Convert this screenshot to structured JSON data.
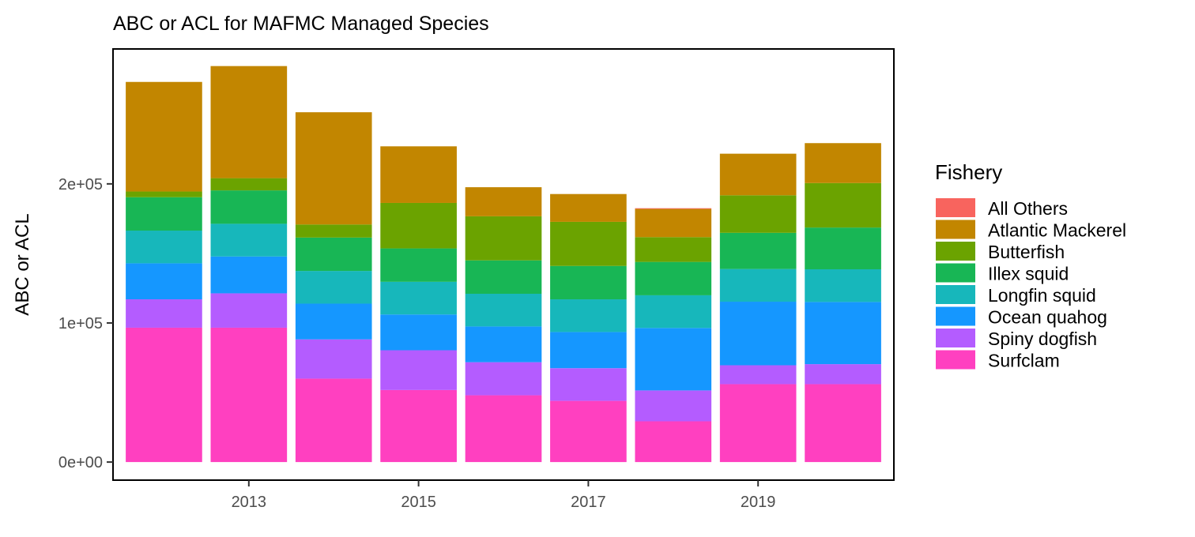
{
  "chart_data": {
    "type": "bar",
    "stacked": true,
    "title": "ABC or ACL for MAFMC Managed Species",
    "xlabel": "",
    "ylabel": "ABC or ACL",
    "x": [
      2012,
      2013,
      2014,
      2015,
      2016,
      2017,
      2018,
      2019,
      2020
    ],
    "x_ticks": [
      2013,
      2015,
      2017,
      2019
    ],
    "y_ticks": [
      0,
      100000,
      200000
    ],
    "y_tick_labels": [
      "0e+00",
      "1e+05",
      "2e+05"
    ],
    "ylim": [
      -13000,
      297000
    ],
    "xlim": [
      2011.4,
      2020.6
    ],
    "grid": false,
    "legend": {
      "title": "Fishery",
      "position": "right"
    },
    "series": [
      {
        "name": "Surfclam",
        "color": "#FF40C0",
        "values": [
          96600,
          96600,
          60000,
          51800,
          48000,
          44000,
          29300,
          56000,
          56000
        ]
      },
      {
        "name": "Spiny dogfish",
        "color": "#B45CFF",
        "values": [
          20400,
          24700,
          28200,
          28600,
          23800,
          23500,
          22200,
          13600,
          14400
        ]
      },
      {
        "name": "Ocean quahog",
        "color": "#1597FF",
        "values": [
          25900,
          26500,
          25700,
          25700,
          25700,
          26000,
          44900,
          45700,
          44700
        ]
      },
      {
        "name": "Longfin squid",
        "color": "#17B7BB",
        "values": [
          23500,
          23500,
          23500,
          23500,
          23500,
          23500,
          23500,
          23500,
          23500
        ]
      },
      {
        "name": "Illex squid",
        "color": "#18B655",
        "values": [
          24000,
          24000,
          24000,
          24000,
          24000,
          24000,
          24000,
          26000,
          30000
        ]
      },
      {
        "name": "Butterfish",
        "color": "#6BA300",
        "values": [
          4100,
          8800,
          9400,
          32700,
          31700,
          31700,
          17800,
          27000,
          32000
        ]
      },
      {
        "name": "Atlantic Mackerel",
        "color": "#C28600",
        "values": [
          78800,
          80600,
          80700,
          40700,
          20900,
          20000,
          20300,
          29900,
          28700
        ]
      },
      {
        "name": "All Others",
        "color": "#F8645E",
        "values": [
          0,
          0,
          0,
          0,
          0,
          0,
          500,
          0,
          0
        ]
      }
    ],
    "legend_order": [
      "All Others",
      "Atlantic Mackerel",
      "Butterfish",
      "Illex squid",
      "Longfin squid",
      "Ocean quahog",
      "Spiny dogfish",
      "Surfclam"
    ]
  }
}
